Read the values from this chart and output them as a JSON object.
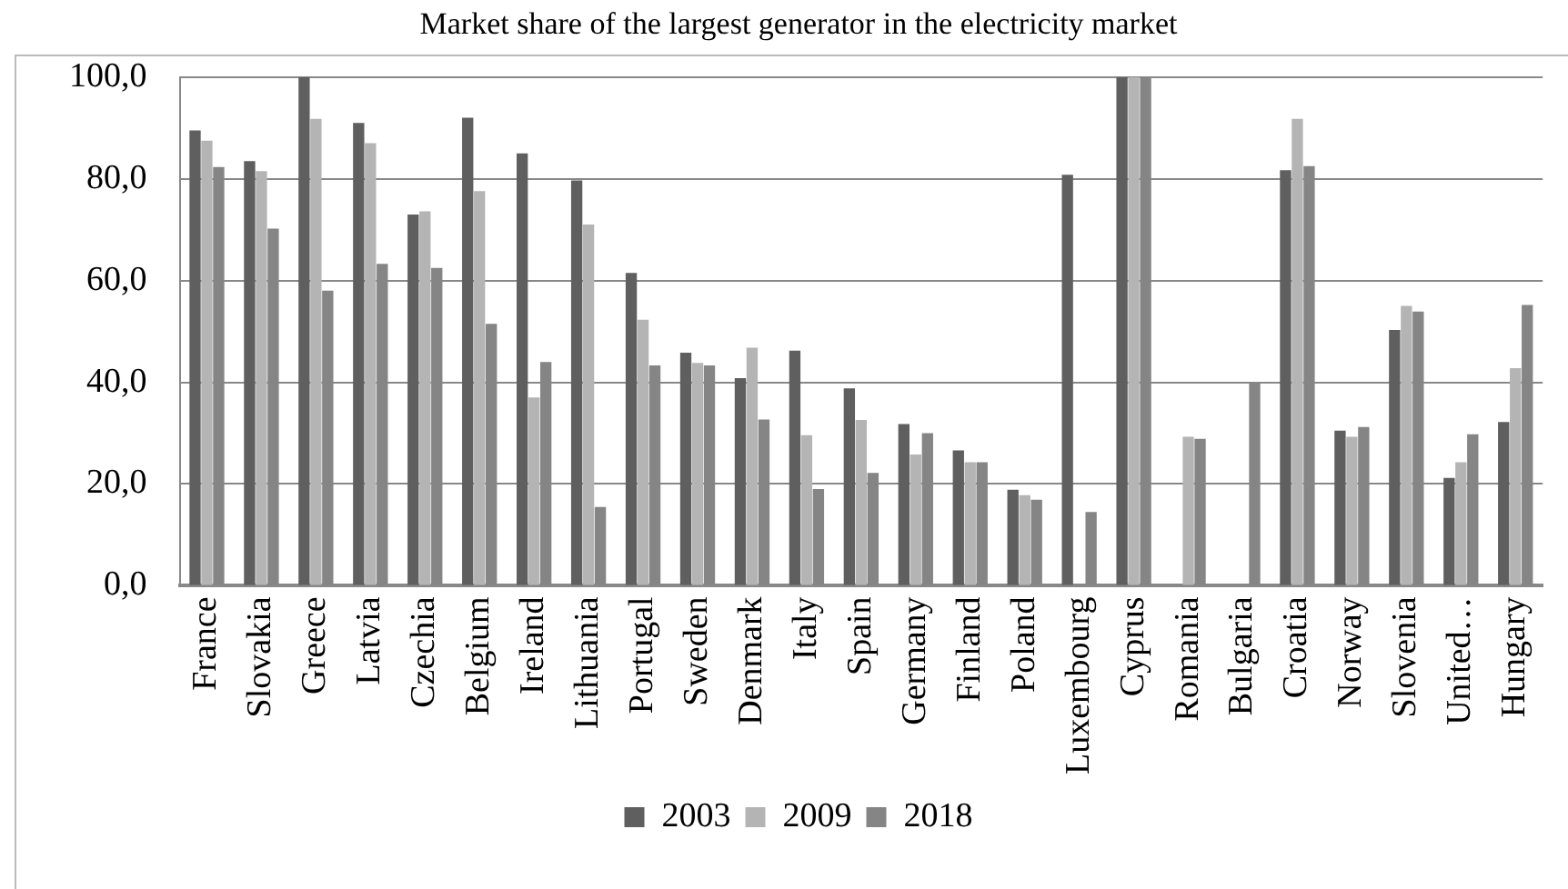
{
  "chart_data": {
    "type": "bar",
    "title": "Market share of the largest generator in the electricity market",
    "categories": [
      "France",
      "Slovakia",
      "Greece",
      "Latvia",
      "Czechia",
      "Belgium",
      "Ireland",
      "Lithuania",
      "Portugal",
      "Sweden",
      "Denmark",
      "Italy",
      "Spain",
      "Germany",
      "Finland",
      "Poland",
      "Luxembourg",
      "Cyprus",
      "Romania",
      "Bulgaria",
      "Croatia",
      "Norway",
      "Slovenia",
      "United…",
      "Hungary"
    ],
    "series": [
      {
        "name": "2003",
        "color": "#5f5f5f",
        "values": [
          89.5,
          83.5,
          100,
          91,
          73,
          92,
          85,
          79.7,
          61.5,
          45.8,
          40.8,
          46.2,
          38.8,
          31.8,
          26.6,
          18.9,
          80.8,
          100,
          null,
          null,
          81.7,
          30.5,
          50.3,
          21.2,
          32.2
        ]
      },
      {
        "name": "2009",
        "color": "#b4b4b4",
        "values": [
          87.5,
          81.5,
          91.8,
          87,
          73.6,
          77.6,
          37,
          71,
          52.3,
          43.8,
          46.8,
          29.6,
          32.6,
          25.8,
          24.3,
          17.8,
          null,
          100,
          29.3,
          null,
          91.8,
          29.3,
          55,
          24.3,
          42.8
        ]
      },
      {
        "name": "2018",
        "color": "#858585",
        "values": [
          82.3,
          70.2,
          58,
          63.3,
          62.5,
          51.5,
          44,
          15.5,
          43.3,
          43.3,
          32.7,
          19,
          22.2,
          30,
          24.3,
          16.9,
          14.5,
          100,
          28.9,
          39.9,
          82.5,
          31.2,
          53.9,
          29.8,
          55.2
        ]
      }
    ],
    "ylim": [
      0,
      100
    ],
    "yticks": [
      {
        "value": 0,
        "label": "0,0"
      },
      {
        "value": 20,
        "label": "20,0"
      },
      {
        "value": 40,
        "label": "40,0"
      },
      {
        "value": 60,
        "label": "60,0"
      },
      {
        "value": 80,
        "label": "80,0"
      },
      {
        "value": 100,
        "label": "100,0"
      }
    ],
    "grid": "y",
    "legend": "bottom"
  }
}
